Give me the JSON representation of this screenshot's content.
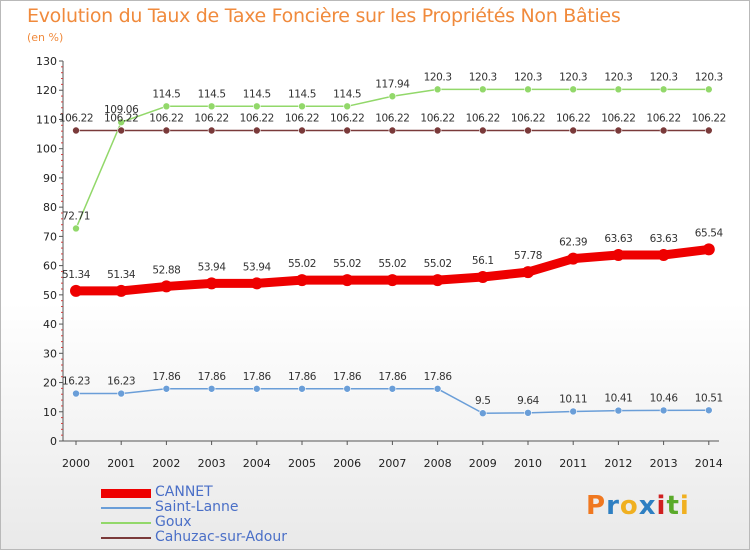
{
  "header": {
    "title": "Evolution du Taux de Taxe Foncière sur les Propriétés Non Bâties",
    "unit": "(en %)"
  },
  "logo": {
    "text": "Proxiti",
    "colors": [
      "#f07820",
      "#2e7fc2",
      "#f0b020",
      "#2e7fc2",
      "#d02020",
      "#5aaa2a",
      "#f0b020"
    ]
  },
  "chart_data": {
    "type": "line",
    "title": "Evolution du Taux de Taxe Foncière sur les Propriétés Non Bâties",
    "ylabel": "(en %)",
    "xlabel": "",
    "ylim": [
      0,
      130
    ],
    "yticks": [
      0,
      10,
      20,
      30,
      40,
      50,
      60,
      70,
      80,
      90,
      100,
      110,
      120,
      130
    ],
    "grid": false,
    "legend": "bottom-left",
    "x": [
      "2000",
      "2001",
      "2002",
      "2003",
      "2004",
      "2005",
      "2006",
      "2007",
      "2008",
      "2009",
      "2010",
      "2011",
      "2012",
      "2013",
      "2014"
    ],
    "series": [
      {
        "name": "CANNET",
        "color": "#ee0000",
        "thick": true,
        "values": [
          51.34,
          51.34,
          52.88,
          53.94,
          53.94,
          55.02,
          55.02,
          55.02,
          55.02,
          56.1,
          57.78,
          62.39,
          63.63,
          63.63,
          65.54
        ],
        "labels": [
          "51.34",
          "51.34",
          "52.88",
          "53.94",
          "53.94",
          "55.02",
          "55.02",
          "55.02",
          "55.02",
          "56.1",
          "57.78",
          "62.39",
          "63.63",
          "63.63",
          "65.54"
        ]
      },
      {
        "name": "Saint-Lanne",
        "color": "#6a9ed8",
        "thick": false,
        "values": [
          16.23,
          16.23,
          17.86,
          17.86,
          17.86,
          17.86,
          17.86,
          17.86,
          17.86,
          9.5,
          9.64,
          10.11,
          10.41,
          10.46,
          10.51
        ],
        "labels": [
          "16.23",
          "16.23",
          "17.86",
          "17.86",
          "17.86",
          "17.86",
          "17.86",
          "17.86",
          "17.86",
          "9.5",
          "9.64",
          "10.11",
          "10.41",
          "10.46",
          "10.51"
        ]
      },
      {
        "name": "Goux",
        "color": "#92d86a",
        "thick": false,
        "values": [
          72.71,
          109.06,
          114.5,
          114.5,
          114.5,
          114.5,
          114.5,
          117.94,
          120.3,
          120.3,
          120.3,
          120.3,
          120.3,
          120.3,
          120.3
        ],
        "labels": [
          "72.71",
          "109.06",
          "114.5",
          "114.5",
          "114.5",
          "114.5",
          "114.5",
          "117.94",
          "120.3",
          "120.3",
          "120.3",
          "120.3",
          "120.3",
          "120.3",
          "120.3"
        ]
      },
      {
        "name": "Cahuzac-sur-Adour",
        "color": "#7a3a3a",
        "thick": false,
        "values": [
          106.22,
          106.22,
          106.22,
          106.22,
          106.22,
          106.22,
          106.22,
          106.22,
          106.22,
          106.22,
          106.22,
          106.22,
          106.22,
          106.22,
          106.22
        ],
        "labels": [
          "106.22",
          "106.22",
          "106.22",
          "106.22",
          "106.22",
          "106.22",
          "106.22",
          "106.22",
          "106.22",
          "106.22",
          "106.22",
          "106.22",
          "106.22",
          "106.22",
          "106.22"
        ]
      }
    ]
  }
}
